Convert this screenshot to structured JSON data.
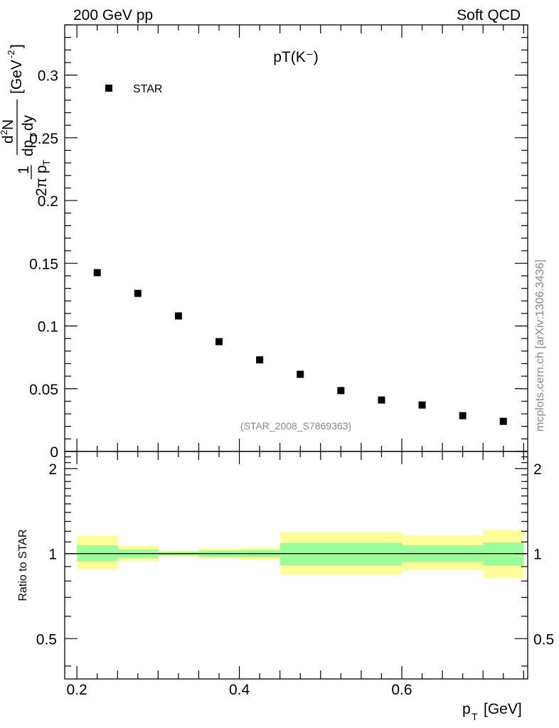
{
  "header": {
    "left": "200 GeV pp",
    "right": "Soft QCD"
  },
  "watermark": "mcplots.cern.ch [arXiv:1306.3436]",
  "chart_data": [
    {
      "type": "scatter",
      "title": "pT(K⁻)",
      "reference": "(STAR_2008_S7869363)",
      "ylabel": "1/(2π pT) d²N/(dpT dy) [GeV⁻²]",
      "xlim": [
        0.185,
        0.755
      ],
      "ylim": [
        0,
        0.34
      ],
      "marker_color": "#000000",
      "series": [
        {
          "name": "STAR",
          "x": [
            0.225,
            0.275,
            0.325,
            0.375,
            0.425,
            0.475,
            0.525,
            0.575,
            0.625,
            0.675,
            0.725
          ],
          "y": [
            0.1425,
            0.126,
            0.108,
            0.0875,
            0.073,
            0.0615,
            0.0485,
            0.041,
            0.037,
            0.0285,
            0.024
          ]
        }
      ],
      "y_tick_labels": [
        "0",
        "0.05",
        "0.1",
        "0.15",
        "0.2",
        "0.25",
        "0.3"
      ],
      "y_tick_values": [
        0,
        0.05,
        0.1,
        0.15,
        0.2,
        0.25,
        0.3
      ]
    },
    {
      "type": "area",
      "ylabel": "Ratio to STAR",
      "xlabel": "pT [GeV]",
      "xlim": [
        0.185,
        0.755
      ],
      "ylim": [
        0.36,
        2.3
      ],
      "y_scale": "log",
      "reference_line": 1,
      "inner_band_color": "#99ff99",
      "outer_band_color": "#ffff99",
      "bins": [
        {
          "x0": 0.2,
          "x1": 0.25,
          "inner": [
            0.94,
            1.07
          ],
          "outer": [
            0.88,
            1.155
          ]
        },
        {
          "x0": 0.25,
          "x1": 0.3,
          "inner": [
            0.965,
            1.035
          ],
          "outer": [
            0.94,
            1.065
          ]
        },
        {
          "x0": 0.3,
          "x1": 0.35,
          "inner": [
            0.985,
            1.015
          ],
          "outer": [
            0.975,
            1.025
          ]
        },
        {
          "x0": 0.35,
          "x1": 0.4,
          "inner": [
            0.975,
            1.025
          ],
          "outer": [
            0.96,
            1.04
          ]
        },
        {
          "x0": 0.4,
          "x1": 0.45,
          "inner": [
            0.97,
            1.03
          ],
          "outer": [
            0.95,
            1.05
          ]
        },
        {
          "x0": 0.45,
          "x1": 0.6,
          "inner": [
            0.91,
            1.09
          ],
          "outer": [
            0.84,
            1.19
          ]
        },
        {
          "x0": 0.6,
          "x1": 0.7,
          "inner": [
            0.935,
            1.07
          ],
          "outer": [
            0.875,
            1.16
          ]
        },
        {
          "x0": 0.7,
          "x1": 0.75,
          "inner": [
            0.91,
            1.095
          ],
          "outer": [
            0.82,
            1.21
          ]
        }
      ],
      "y_tick_labels": [
        "0.5",
        "1",
        "2"
      ],
      "y_tick_values": [
        0.5,
        1,
        2
      ],
      "x_tick_labels": [
        "0.2",
        "0.4",
        "0.6"
      ],
      "x_tick_values": [
        0.2,
        0.4,
        0.6
      ]
    }
  ]
}
